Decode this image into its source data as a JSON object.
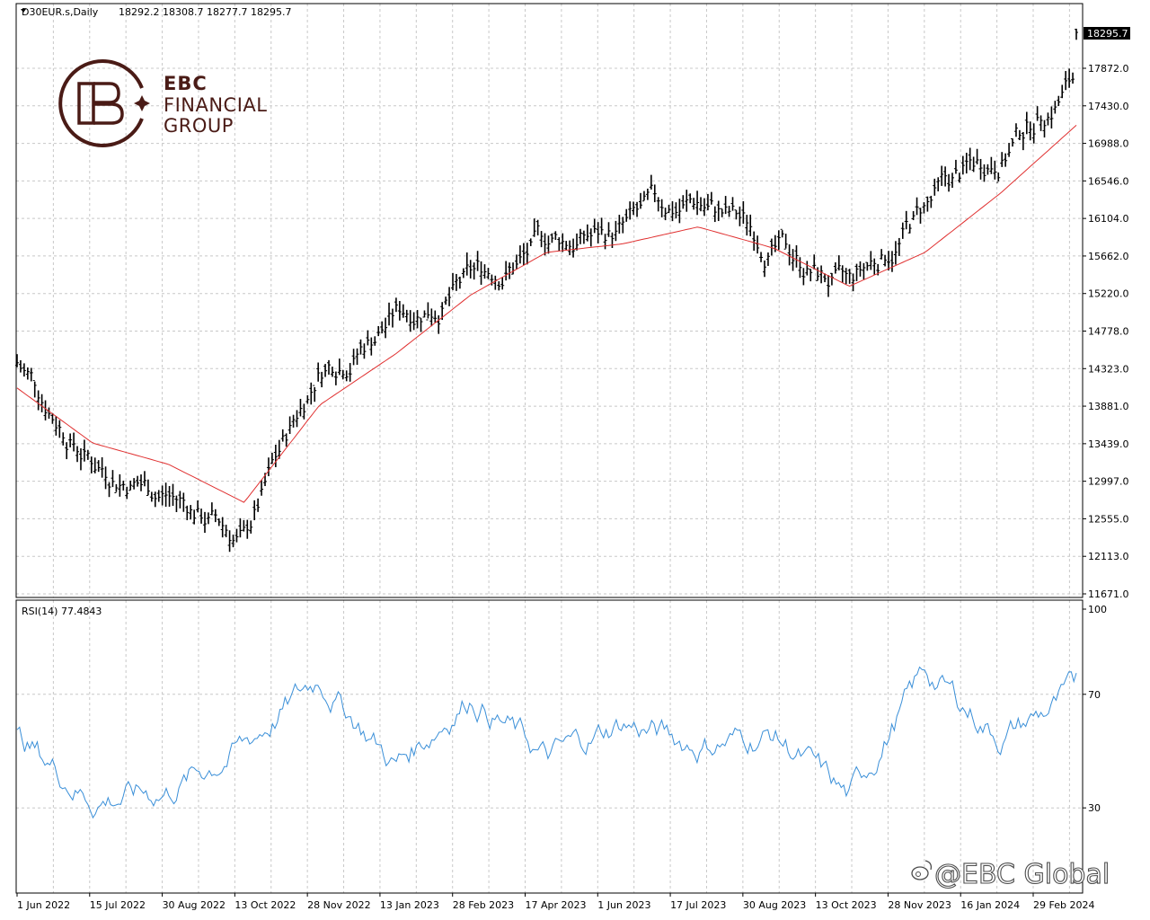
{
  "header": {
    "symbol_label": "D30EUR.s,Daily",
    "ohlc_label": "18292.2 18308.7 18277.7 18295.7"
  },
  "price_panel": {
    "current_price_label": "18295.7",
    "price_axis_ticks": [
      "17872.0",
      "17430.0",
      "16988.0",
      "16546.0",
      "16104.0",
      "15662.0",
      "15220.0",
      "14778.0",
      "14323.0",
      "13881.0",
      "13439.0",
      "12997.0",
      "12555.0",
      "12113.0",
      "11671.0"
    ]
  },
  "rsi_panel": {
    "label": "RSI(14) 77.4843",
    "axis_ticks": [
      "100",
      "70",
      "30"
    ]
  },
  "time_axis": {
    "labels": [
      "1 Jun 2022",
      "15 Jul 2022",
      "30 Aug 2022",
      "13 Oct 2022",
      "28 Nov 2022",
      "13 Jan 2023",
      "28 Feb 2023",
      "17 Apr 2023",
      "1 Jun 2023",
      "17 Jul 2023",
      "30 Aug 2023",
      "13 Oct 2023",
      "28 Nov 2023",
      "16 Jan 2024",
      "29 Feb 2024"
    ]
  },
  "logo": {
    "line1": "EBC",
    "line2": "FINANCIAL",
    "line3": "GROUP",
    "color": "#4a1b16"
  },
  "watermark": {
    "text": "@EBC Global",
    "icon": "weibo-icon"
  },
  "colors": {
    "bars": "#000000",
    "moving_average": "#e03030",
    "rsi_line": "#3a8fd8",
    "grid": "#c8c8c8"
  },
  "chart_data": [
    {
      "type": "ohlc",
      "symbol": "D30EUR.s",
      "timeframe": "Daily",
      "x_range": [
        "1 Jun 2022",
        "29 Feb 2024"
      ],
      "ylim": [
        11671.0,
        18295.7
      ],
      "last": {
        "open": 18292.2,
        "high": 18308.7,
        "low": 18277.7,
        "close": 18295.7
      },
      "x": [
        "1 Jun 2022",
        "15 Jul 2022",
        "30 Aug 2022",
        "13 Oct 2022",
        "28 Nov 2022",
        "13 Jan 2023",
        "28 Feb 2023",
        "17 Apr 2023",
        "1 Jun 2023",
        "17 Jul 2023",
        "30 Aug 2023",
        "13 Oct 2023",
        "28 Nov 2023",
        "16 Jan 2024",
        "29 Feb 2024"
      ],
      "close_approx": [
        14400,
        13300,
        12900,
        12300,
        14350,
        15000,
        15350,
        15800,
        15950,
        16300,
        15800,
        15200,
        16200,
        16900,
        17800
      ],
      "moving_average_approx": [
        14100,
        13450,
        13200,
        12750,
        13900,
        14500,
        15200,
        15700,
        15800,
        16000,
        15750,
        15300,
        15700,
        16400,
        17200
      ],
      "grid": true
    },
    {
      "type": "line",
      "name": "RSI(14)",
      "ylim": [
        0,
        100
      ],
      "reference_levels": [
        30,
        70
      ],
      "last_value": 77.4843,
      "x": [
        "1 Jun 2022",
        "15 Jul 2022",
        "30 Aug 2022",
        "13 Oct 2022",
        "28 Nov 2022",
        "13 Jan 2023",
        "28 Feb 2023",
        "17 Apr 2023",
        "1 Jun 2023",
        "17 Jul 2023",
        "30 Aug 2023",
        "13 Oct 2023",
        "28 Nov 2023",
        "16 Jan 2024",
        "29 Feb 2024"
      ],
      "values_approx": [
        55,
        33,
        36,
        52,
        76,
        45,
        70,
        47,
        60,
        52,
        56,
        33,
        78,
        55,
        70
      ],
      "grid": true
    }
  ]
}
